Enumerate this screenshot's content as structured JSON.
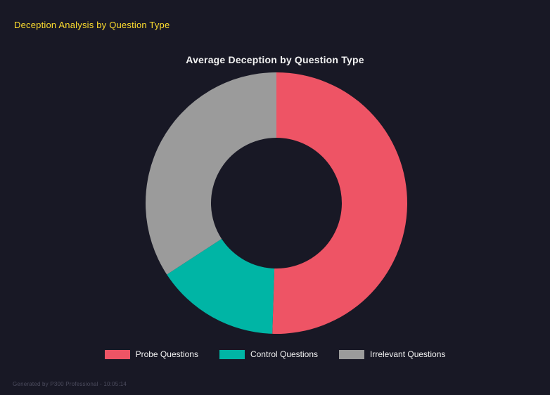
{
  "header": {
    "title": "Deception Analysis by Question Type"
  },
  "chart_data": {
    "type": "pie",
    "subtype": "donut",
    "title": "Average Deception by Question Type",
    "categories": [
      "Probe Questions",
      "Control Questions",
      "Irrelevant Questions"
    ],
    "values": [
      50.5,
      15.3,
      34.2
    ],
    "colors": [
      "#ee5465",
      "#00b5a5",
      "#9b9b9b"
    ],
    "start_angle_deg": 0,
    "inner_radius_ratio": 0.5,
    "legend_position": "bottom",
    "background": "#181825"
  },
  "footer": {
    "text": "Generated by P300 Professional - 10:05:14"
  }
}
